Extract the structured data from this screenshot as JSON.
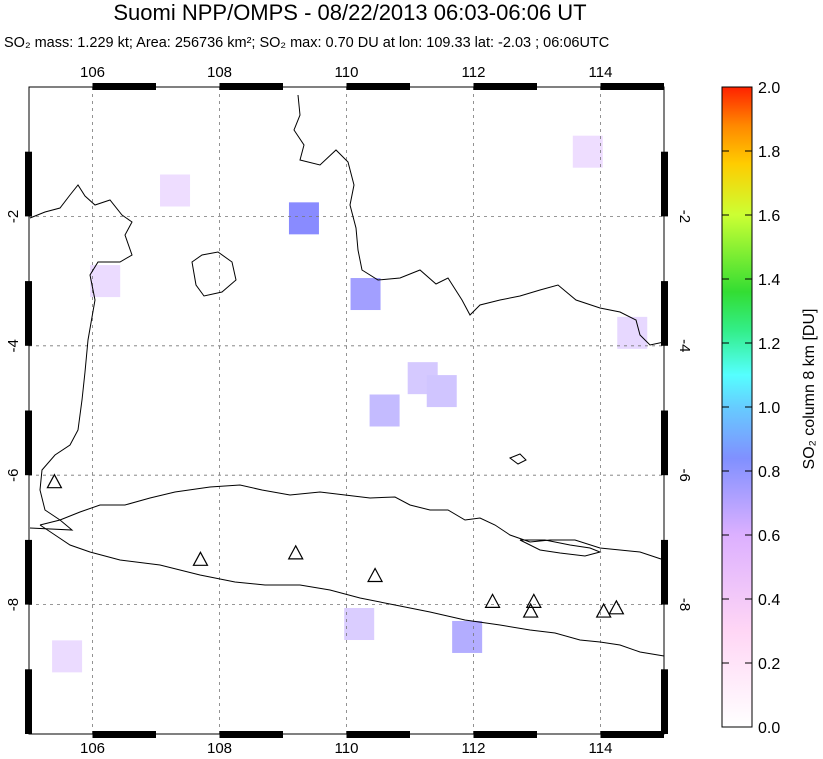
{
  "title": "Suomi NPP/OMPS - 08/22/2013 06:03-06:06 UT",
  "subtitle": {
    "mass": "SO₂ mass: 1.229 kt; Area: 256736 km²; SO₂ max: 0.70 DU at lon: 109.33 lat: -2.03 ; 06:06UTC"
  },
  "colorbar": {
    "label": "SO₂ column 8 km [DU]",
    "min": 0.0,
    "max": 2.0,
    "ticks": [
      "0.0",
      "0.2",
      "0.4",
      "0.6",
      "0.8",
      "1.0",
      "1.2",
      "1.4",
      "1.6",
      "1.8",
      "2.0"
    ]
  },
  "map": {
    "lon_range": [
      105,
      115
    ],
    "lat_range": [
      -10,
      0
    ],
    "lon_ticks": [
      "106",
      "108",
      "110",
      "112",
      "114"
    ],
    "lat_ticks": [
      "-2",
      "-4",
      "-6",
      "-8"
    ],
    "grid": "dashed",
    "volcano_markers": [
      [
        105.4,
        -6.1
      ],
      [
        107.7,
        -7.3
      ],
      [
        109.2,
        -7.2
      ],
      [
        110.45,
        -7.55
      ],
      [
        112.3,
        -7.95
      ],
      [
        112.95,
        -7.95
      ],
      [
        112.9,
        -8.1
      ],
      [
        114.05,
        -8.1
      ],
      [
        114.25,
        -8.05
      ]
    ],
    "so2_pixels": [
      [
        109.33,
        -2.03,
        0.7
      ],
      [
        110.3,
        -3.2,
        0.55
      ],
      [
        111.9,
        -8.5,
        0.45
      ],
      [
        110.6,
        -5.0,
        0.35
      ],
      [
        111.2,
        -4.5,
        0.25
      ],
      [
        111.5,
        -4.7,
        0.28
      ],
      [
        110.2,
        -8.3,
        0.22
      ],
      [
        106.2,
        -3.0,
        0.12
      ],
      [
        113.8,
        -1.0,
        0.1
      ],
      [
        114.5,
        -3.8,
        0.14
      ],
      [
        107.3,
        -1.6,
        0.1
      ],
      [
        105.6,
        -8.8,
        0.12
      ]
    ]
  }
}
